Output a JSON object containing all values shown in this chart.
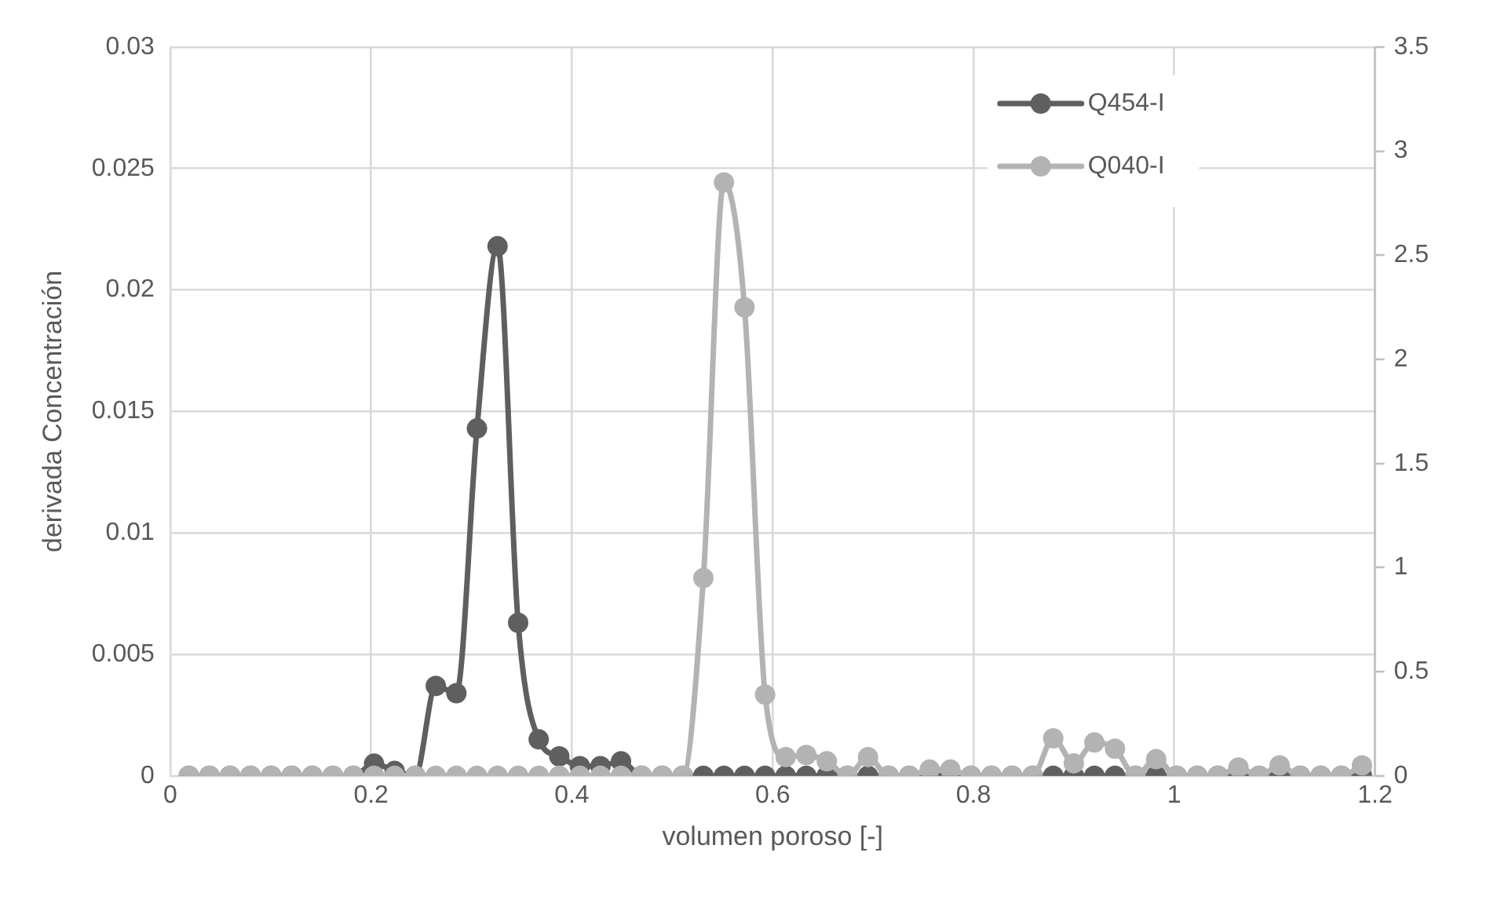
{
  "chart_data": {
    "type": "line",
    "xlabel": "volumen poroso [-]",
    "ylabel": "derivada Concentración",
    "x": [
      0.0185,
      0.039,
      0.0595,
      0.08,
      0.1005,
      0.121,
      0.1415,
      0.162,
      0.1825,
      0.203,
      0.2235,
      0.244,
      0.2645,
      0.285,
      0.3055,
      0.326,
      0.3465,
      0.367,
      0.3875,
      0.408,
      0.4285,
      0.449,
      0.4695,
      0.49,
      0.5105,
      0.531,
      0.5515,
      0.572,
      0.5925,
      0.613,
      0.6335,
      0.654,
      0.6745,
      0.695,
      0.7155,
      0.736,
      0.7565,
      0.777,
      0.7975,
      0.818,
      0.8385,
      0.859,
      0.8795,
      0.9,
      0.9205,
      0.941,
      0.9615,
      0.982,
      1.0025,
      1.023,
      1.0435,
      1.064,
      1.0845,
      1.105,
      1.1255,
      1.146,
      1.1665,
      1.187
    ],
    "series": [
      {
        "name": "Q454-I",
        "color": "#5f5f5f",
        "values": [
          0,
          0,
          0,
          0,
          0,
          0,
          0,
          0,
          0,
          0.0005,
          0.0002,
          0,
          0.0037,
          0.0034,
          0.0143,
          0.0218,
          0.0063,
          0.0015,
          0.0008,
          0.0004,
          0.0004,
          0.0006,
          0,
          0,
          0,
          0,
          0,
          0,
          0,
          0,
          0,
          0,
          0,
          0,
          0,
          0,
          0,
          0,
          0,
          0,
          0,
          0,
          0,
          0,
          0,
          0,
          0,
          0,
          0,
          0,
          0,
          0,
          0,
          0,
          0,
          0,
          0,
          0
        ]
      },
      {
        "name": "Q040-I",
        "color": "#b3b3b3",
        "axis": "y2",
        "values": [
          0,
          0,
          0,
          0,
          0,
          0,
          0,
          0,
          0,
          0,
          0,
          0,
          0,
          0,
          0,
          0,
          0,
          0,
          0,
          0,
          0,
          0,
          0,
          0,
          0,
          0.95,
          2.85,
          2.25,
          0.39,
          0.09,
          0.1,
          0.07,
          0,
          0.09,
          0,
          0,
          0.03,
          0.03,
          0,
          0,
          0,
          0,
          0.18,
          0.06,
          0.16,
          0.13,
          0,
          0.08,
          0,
          0,
          0,
          0.04,
          0,
          0.05,
          0,
          0,
          0,
          0.05
        ]
      }
    ],
    "xlim": [
      0,
      1.2
    ],
    "xticks": [
      0,
      0.2,
      0.4,
      0.6,
      0.8,
      1,
      1.2
    ],
    "ylim": [
      0,
      0.03
    ],
    "yticks": [
      0,
      0.005,
      0.01,
      0.015,
      0.02,
      0.025,
      0.03
    ],
    "y2lim": [
      0,
      3.5
    ],
    "y2ticks": [
      0,
      0.5,
      1,
      1.5,
      2,
      2.5,
      3,
      3.5
    ],
    "grid": true,
    "legend": "top right",
    "marker": "circle",
    "line_style": "solid"
  }
}
